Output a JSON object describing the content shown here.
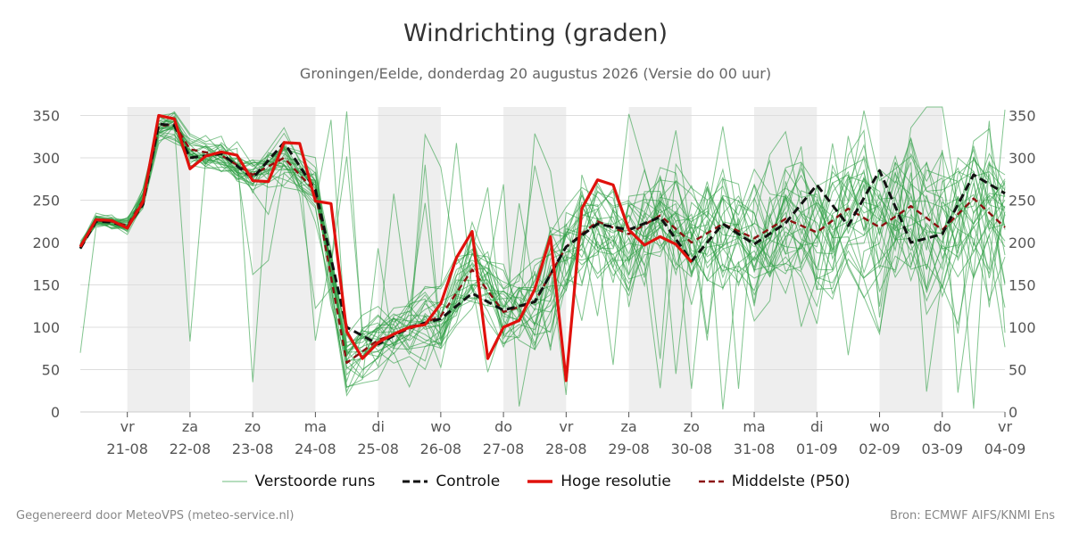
{
  "title": "Windrichting (graden)",
  "subtitle": "Groningen/Eelde, donderdag 20 augustus 2026 (Versie do 00 uur)",
  "footer_left": "Gegenereerd door MeteoVPS (meteo-service.nl)",
  "footer_right": "Bron: ECMWF AIFS/KNMI Ens",
  "colors": {
    "ensemble": "#2e9e44",
    "control": "#111111",
    "high_res": "#e0110c",
    "median": "#8b1010",
    "shade": "#eeeeee",
    "grid": "#dddddd"
  },
  "legend": [
    {
      "key": "ensemble",
      "label": "Verstoorde runs",
      "style": "thin-solid"
    },
    {
      "key": "control",
      "label": "Controle",
      "style": "dashed"
    },
    {
      "key": "high_res",
      "label": "Hoge resolutie",
      "style": "thick-solid"
    },
    {
      "key": "median",
      "label": "Middelste (P50)",
      "style": "dashed"
    }
  ],
  "chart_data": {
    "type": "line",
    "title": "Windrichting (graden)",
    "ylim": [
      0,
      360
    ],
    "yticks": [
      0,
      50,
      100,
      150,
      200,
      250,
      300,
      350
    ],
    "xlim": [
      "2026-08-20 06:00",
      "2026-09-04 00:00"
    ],
    "grid": true,
    "legend_position": "bottom",
    "x_ticks": [
      {
        "date": "2026-08-21",
        "day": "vr",
        "label": "21-08"
      },
      {
        "date": "2026-08-22",
        "day": "za",
        "label": "22-08"
      },
      {
        "date": "2026-08-23",
        "day": "zo",
        "label": "23-08"
      },
      {
        "date": "2026-08-24",
        "day": "ma",
        "label": "24-08"
      },
      {
        "date": "2026-08-25",
        "day": "di",
        "label": "25-08"
      },
      {
        "date": "2026-08-26",
        "day": "wo",
        "label": "26-08"
      },
      {
        "date": "2026-08-27",
        "day": "do",
        "label": "27-08"
      },
      {
        "date": "2026-08-28",
        "day": "vr",
        "label": "28-08"
      },
      {
        "date": "2026-08-29",
        "day": "za",
        "label": "29-08"
      },
      {
        "date": "2026-08-30",
        "day": "zo",
        "label": "30-08"
      },
      {
        "date": "2026-08-31",
        "day": "ma",
        "label": "31-08"
      },
      {
        "date": "2026-09-01",
        "day": "di",
        "label": "01-09"
      },
      {
        "date": "2026-09-02",
        "day": "wo",
        "label": "02-09"
      },
      {
        "date": "2026-09-03",
        "day": "do",
        "label": "03-09"
      },
      {
        "date": "2026-09-04",
        "day": "vr",
        "label": "04-09"
      }
    ],
    "weekend_shading": [
      [
        "2026-08-21",
        "2026-08-22"
      ],
      [
        "2026-08-23",
        "2026-08-24"
      ],
      [
        "2026-08-25",
        "2026-08-26"
      ],
      [
        "2026-08-27",
        "2026-08-28"
      ],
      [
        "2026-08-29",
        "2026-08-30"
      ],
      [
        "2026-08-31",
        "2026-09-01"
      ],
      [
        "2026-09-02",
        "2026-09-03"
      ]
    ],
    "series": [
      {
        "name": "Hoge resolutie",
        "x": [
          "2026-08-20 06:00",
          "2026-08-20 12:00",
          "2026-08-20 18:00",
          "2026-08-21 00:00",
          "2026-08-21 06:00",
          "2026-08-21 12:00",
          "2026-08-21 18:00",
          "2026-08-22 00:00",
          "2026-08-22 06:00",
          "2026-08-22 12:00",
          "2026-08-22 18:00",
          "2026-08-23 00:00",
          "2026-08-23 06:00",
          "2026-08-23 12:00",
          "2026-08-23 18:00",
          "2026-08-24 00:00",
          "2026-08-24 06:00",
          "2026-08-24 12:00",
          "2026-08-24 18:00",
          "2026-08-25 00:00",
          "2026-08-25 06:00",
          "2026-08-25 12:00",
          "2026-08-25 18:00",
          "2026-08-26 00:00",
          "2026-08-26 06:00",
          "2026-08-26 12:00",
          "2026-08-26 18:00",
          "2026-08-27 00:00",
          "2026-08-27 06:00",
          "2026-08-27 12:00",
          "2026-08-27 18:00",
          "2026-08-28 00:00",
          "2026-08-28 06:00",
          "2026-08-28 12:00",
          "2026-08-28 18:00",
          "2026-08-29 00:00",
          "2026-08-29 06:00",
          "2026-08-29 12:00",
          "2026-08-29 18:00",
          "2026-08-30 00:00"
        ],
        "values": [
          195,
          227,
          226,
          217,
          248,
          350,
          346,
          287,
          302,
          307,
          303,
          273,
          272,
          318,
          317,
          249,
          246,
          95,
          63,
          82,
          92,
          100,
          103,
          128,
          182,
          213,
          63,
          100,
          108,
          145,
          207,
          37,
          240,
          274,
          268,
          215,
          197,
          207,
          198,
          177
        ]
      },
      {
        "name": "Controle",
        "x": [
          "2026-08-20 06:00",
          "2026-08-20 12:00",
          "2026-08-20 18:00",
          "2026-08-21 00:00",
          "2026-08-21 06:00",
          "2026-08-21 12:00",
          "2026-08-21 18:00",
          "2026-08-22 00:00",
          "2026-08-22 12:00",
          "2026-08-23 00:00",
          "2026-08-23 12:00",
          "2026-08-24 00:00",
          "2026-08-24 12:00",
          "2026-08-25 00:00",
          "2026-08-25 12:00",
          "2026-08-26 00:00",
          "2026-08-26 12:00",
          "2026-08-27 00:00",
          "2026-08-27 12:00",
          "2026-08-28 00:00",
          "2026-08-28 12:00",
          "2026-08-29 00:00",
          "2026-08-29 12:00",
          "2026-08-30 00:00",
          "2026-08-30 12:00",
          "2026-08-31 00:00",
          "2026-08-31 12:00",
          "2026-09-01 00:00",
          "2026-09-01 12:00",
          "2026-09-02 00:00",
          "2026-09-02 12:00",
          "2026-09-03 00:00",
          "2026-09-03 12:00",
          "2026-09-04 00:00"
        ],
        "values": [
          193,
          225,
          224,
          218,
          245,
          340,
          338,
          300,
          305,
          276,
          318,
          262,
          100,
          80,
          100,
          110,
          140,
          120,
          130,
          195,
          222,
          215,
          230,
          178,
          222,
          198,
          223,
          268,
          220,
          285,
          200,
          210,
          280,
          258
        ]
      },
      {
        "name": "Middelste (P50)",
        "x": [
          "2026-08-20 06:00",
          "2026-08-20 12:00",
          "2026-08-20 18:00",
          "2026-08-21 00:00",
          "2026-08-21 06:00",
          "2026-08-21 12:00",
          "2026-08-21 18:00",
          "2026-08-22 00:00",
          "2026-08-22 12:00",
          "2026-08-23 00:00",
          "2026-08-23 12:00",
          "2026-08-24 00:00",
          "2026-08-24 12:00",
          "2026-08-25 00:00",
          "2026-08-25 12:00",
          "2026-08-26 00:00",
          "2026-08-26 12:00",
          "2026-08-27 00:00",
          "2026-08-27 12:00",
          "2026-08-28 00:00",
          "2026-08-28 12:00",
          "2026-08-29 00:00",
          "2026-08-29 12:00",
          "2026-08-30 00:00",
          "2026-08-30 12:00",
          "2026-08-31 00:00",
          "2026-08-31 12:00",
          "2026-09-01 00:00",
          "2026-09-01 12:00",
          "2026-09-02 00:00",
          "2026-09-02 12:00",
          "2026-09-03 00:00",
          "2026-09-03 12:00",
          "2026-09-04 00:00"
        ],
        "values": [
          196,
          226,
          225,
          220,
          250,
          337,
          340,
          310,
          303,
          280,
          300,
          260,
          58,
          85,
          98,
          113,
          168,
          118,
          130,
          195,
          225,
          210,
          232,
          200,
          222,
          205,
          228,
          212,
          240,
          218,
          243,
          215,
          252,
          218
        ]
      }
    ],
    "ensemble_note": "50 members; values are spread around the P50 line with larger spread after 2026-08-26"
  }
}
